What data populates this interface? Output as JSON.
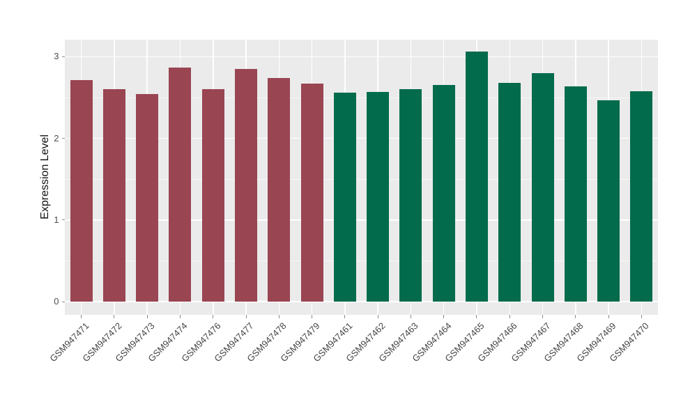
{
  "chart_data": {
    "type": "bar",
    "title": "",
    "xlabel": "",
    "ylabel": "Expression Level",
    "ylim": [
      -0.16,
      3.22
    ],
    "yticks": [
      0,
      1,
      2,
      3
    ],
    "yticks_minor": [
      0.5,
      1.5,
      2.5
    ],
    "legend": "none",
    "grid": "white horizontal major+minor lines and white vertical line per category on gray panel",
    "panel_bg": "#EBEBEB",
    "grid_color": "#FFFFFF",
    "axis_text_color": "#4D4D4D",
    "tick_mark_color": "#8C8C8C",
    "group_colors": {
      "group1": "#9A4552",
      "group2": "#016B4B"
    },
    "bars": [
      {
        "label": "GSM947471",
        "value": 2.71,
        "group": "group1"
      },
      {
        "label": "GSM947472",
        "value": 2.6,
        "group": "group1"
      },
      {
        "label": "GSM947473",
        "value": 2.54,
        "group": "group1"
      },
      {
        "label": "GSM947474",
        "value": 2.87,
        "group": "group1"
      },
      {
        "label": "GSM947476",
        "value": 2.6,
        "group": "group1"
      },
      {
        "label": "GSM947477",
        "value": 2.85,
        "group": "group1"
      },
      {
        "label": "GSM947478",
        "value": 2.74,
        "group": "group1"
      },
      {
        "label": "GSM947479",
        "value": 2.67,
        "group": "group1"
      },
      {
        "label": "GSM947461",
        "value": 2.56,
        "group": "group2"
      },
      {
        "label": "GSM947462",
        "value": 2.57,
        "group": "group2"
      },
      {
        "label": "GSM947463",
        "value": 2.6,
        "group": "group2"
      },
      {
        "label": "GSM947464",
        "value": 2.65,
        "group": "group2"
      },
      {
        "label": "GSM947465",
        "value": 3.06,
        "group": "group2"
      },
      {
        "label": "GSM947466",
        "value": 2.68,
        "group": "group2"
      },
      {
        "label": "GSM947467",
        "value": 2.8,
        "group": "group2"
      },
      {
        "label": "GSM947468",
        "value": 2.64,
        "group": "group2"
      },
      {
        "label": "GSM947469",
        "value": 2.47,
        "group": "group2"
      },
      {
        "label": "GSM947470",
        "value": 2.58,
        "group": "group2"
      }
    ]
  }
}
